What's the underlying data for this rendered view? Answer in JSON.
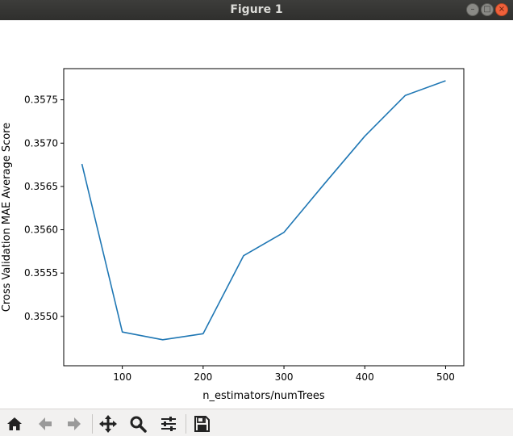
{
  "window": {
    "title": "Figure 1"
  },
  "window_controls": [
    {
      "name": "minimize-button",
      "glyph": "–"
    },
    {
      "name": "maximize-button",
      "glyph": "□"
    },
    {
      "name": "close-button",
      "glyph": "×"
    }
  ],
  "toolbar": {
    "items": [
      {
        "name": "home-button",
        "icon": "home-icon"
      },
      {
        "name": "back-button",
        "icon": "arrow-left-icon"
      },
      {
        "name": "forward-button",
        "icon": "arrow-right-icon"
      },
      {
        "name": "pan-button",
        "icon": "move-icon"
      },
      {
        "name": "zoom-button",
        "icon": "magnifier-icon"
      },
      {
        "name": "configure-subplots-button",
        "icon": "sliders-icon"
      },
      {
        "name": "save-button",
        "icon": "floppy-disk-icon"
      }
    ]
  },
  "chart_data": {
    "type": "line",
    "title": "",
    "xlabel": "n_estimators/numTrees",
    "ylabel": "Cross Validation MAE Average Score",
    "x": [
      50,
      100,
      150,
      200,
      250,
      300,
      350,
      400,
      450,
      500
    ],
    "series": [
      {
        "values": [
          0.35676,
          0.35482,
          0.35473,
          0.3548,
          0.3557,
          0.35597,
          0.35653,
          0.35708,
          0.35755,
          0.35772
        ]
      }
    ],
    "xlim": [
      27.5,
      522.5
    ],
    "ylim": [
      0.35443,
      0.35786
    ],
    "xticks": [
      100,
      200,
      300,
      400,
      500
    ],
    "xtick_labels": [
      "100",
      "200",
      "300",
      "400",
      "500"
    ],
    "yticks": [
      0.355,
      0.3555,
      0.356,
      0.3565,
      0.357,
      0.3575
    ],
    "ytick_labels": [
      "0.3550",
      "0.3555",
      "0.3560",
      "0.3565",
      "0.3570",
      "0.3575"
    ],
    "grid": false,
    "line_color": "#1f77b4"
  }
}
